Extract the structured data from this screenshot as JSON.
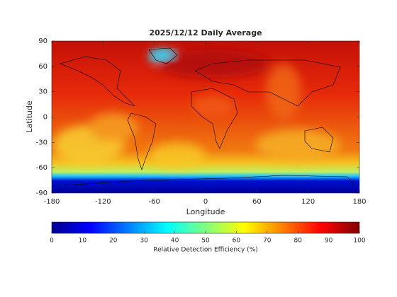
{
  "chart_data": {
    "type": "map",
    "title": "2025/12/12 Daily Average",
    "xlabel": "Longitude",
    "ylabel": "Latitude",
    "xlim": [
      -180,
      180
    ],
    "ylim": [
      -90,
      90
    ],
    "xticks": [
      -180,
      -120,
      -60,
      0,
      60,
      120,
      180
    ],
    "yticks": [
      -90,
      -60,
      -30,
      0,
      30,
      60,
      90
    ],
    "colorbar": {
      "label": "Relative Detection Efficiency (%)",
      "lim": [
        0,
        100
      ],
      "ticks": [
        0,
        10,
        20,
        30,
        40,
        50,
        60,
        70,
        80,
        90,
        100
      ]
    }
  }
}
